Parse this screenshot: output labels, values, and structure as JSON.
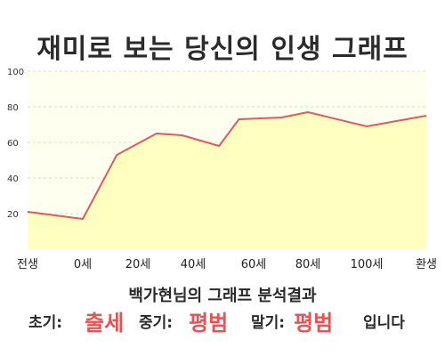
{
  "page": {
    "title": "재미로 보는 당신의 인생 그래프"
  },
  "result": {
    "title": "백가현님의 그래프 분석결과",
    "early_label": "초기:",
    "early_value": "출세",
    "mid_label": "중기:",
    "mid_value": "평범",
    "late_label": "말기:",
    "late_value": "평범",
    "suffix": "입니다"
  },
  "colors": {
    "line": "#e05a5a",
    "fill": "#ffffc0",
    "background": "#fffff0",
    "highlight": "#e55353"
  },
  "chart_data": {
    "type": "area",
    "title": "",
    "xlabel": "",
    "ylabel": "",
    "ylim": [
      0,
      100
    ],
    "yticks": [
      20,
      40,
      60,
      80,
      100
    ],
    "grid": "horizontal dashed",
    "xticks": [
      "전생",
      "0세",
      "20세",
      "40세",
      "60세",
      "80세",
      "100세",
      "환생"
    ],
    "points": [
      {
        "x": "전생",
        "y": 21
      },
      {
        "x": "0세",
        "y": 17
      },
      {
        "x": "12세",
        "y": 53
      },
      {
        "x": "26세",
        "y": 65
      },
      {
        "x": "35세",
        "y": 64
      },
      {
        "x": "48세",
        "y": 58
      },
      {
        "x": "55세",
        "y": 73
      },
      {
        "x": "70세",
        "y": 74
      },
      {
        "x": "80세",
        "y": 77
      },
      {
        "x": "100세",
        "y": 69
      },
      {
        "x": "환생",
        "y": 75
      }
    ]
  }
}
